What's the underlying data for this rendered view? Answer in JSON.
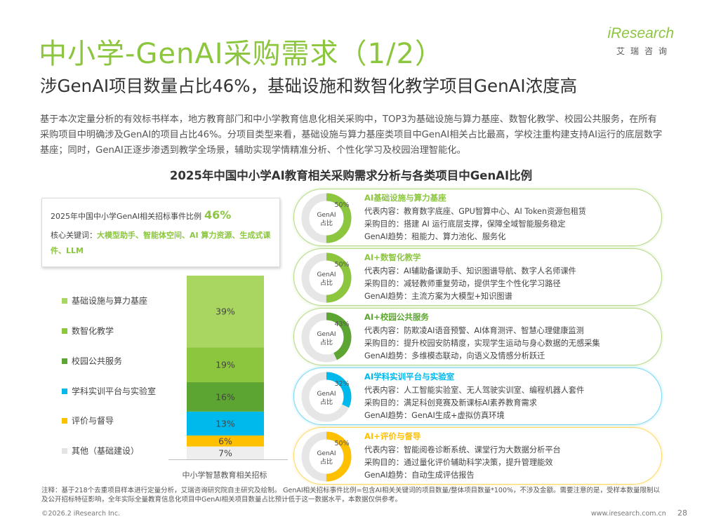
{
  "header": {
    "title": "中小学-GenAI采购需求（1/2）",
    "logo_main": "iResearch",
    "logo_sub": "艾瑞咨询",
    "subtitle": "涉GenAI项目数量占比46%，基础设施和数智化教学项目GenAI浓度高"
  },
  "intro": "基于本次定量分析的有效标书样本，地方教育部门和中小学教育信息化相关采购中，TOP3为基础设施与算力基座、数智化教学、校园公共服务，在所有采购项目中明确涉及GenAI的项目占比46%。分项目类型来看，基础设施与算力基座类项目中GenAI相关占比最高，学校注重构建支持AI运行的底层数字基座；同时，GenAI正逐步渗透到教学全场景，辅助实现学情精准分析、个性化学习及校园治理智能化。",
  "summary": {
    "label": "2025年中国中小学GenAI相关招标事件比例",
    "pct": "46%",
    "kw_label": "核心关键词：",
    "kw_value": "大模型助手、智能体空间、AI 算力资源、生成式课件、LLM"
  },
  "chart_data": {
    "type": "bar",
    "title": "2025年中国中小学AI教育相关采购需求分析与各类项目中GenAI比例",
    "categories": [
      "中小学智慧教育相关招标"
    ],
    "stacked": true,
    "series": [
      {
        "name": "其他（基础建设）",
        "values": [
          7
        ],
        "label": "7%",
        "color": "#eeeeee"
      },
      {
        "name": "评价与督导",
        "values": [
          6
        ],
        "label": "6%",
        "color": "#ffc000"
      },
      {
        "name": "学科实训平台与实验室",
        "values": [
          13
        ],
        "label": "13%",
        "color": "#00b9ec"
      },
      {
        "name": "校园公共服务",
        "values": [
          16
        ],
        "label": "16%",
        "color": "#5da532"
      },
      {
        "name": "数智化教学",
        "values": [
          19
        ],
        "label": "19%",
        "color": "#8cc63f"
      },
      {
        "name": "基础设施与算力基座",
        "values": [
          39
        ],
        "label": "39%",
        "color": "#a9d660"
      }
    ],
    "legend_position": "left"
  },
  "cards": [
    {
      "style": "green",
      "color": "#8cc63f",
      "pct": 50,
      "pct_label": "50%",
      "donut_label1": "GenAI",
      "donut_label2": "占比",
      "title": "AI基础设施与算力基座",
      "line1": "代表内容：教育数字底座、GPU智算中心、AI Token资源包租赁",
      "line2": "采购目的：搭建 AI 运行底层支撑，保障全域智能服务稳定",
      "line3": "GenAI趋势：租能力、算力池化、服务化"
    },
    {
      "style": "green",
      "color": "#8cc63f",
      "pct": 50,
      "pct_label": "50%",
      "donut_label1": "GenAI",
      "donut_label2": "占比",
      "title": "AI+数智化教学",
      "line1": "代表内容：AI辅助备课助手、知识图谱导航、数字人名师课件",
      "line2": "采购目的：减轻教师重复劳动，提供学生个性化学习路径",
      "line3": "GenAI趋势：主流方案为大模型+知识图谱"
    },
    {
      "style": "green",
      "color": "#5da532",
      "pct": 43,
      "pct_label": "43%",
      "donut_label1": "GenAI",
      "donut_label2": "占比",
      "title": "AI+校园公共服务",
      "line1": "代表内容：防欺凌AI语音预警、AI体育测评、智慧心理健康监测",
      "line2": "采购目的：提升校园安防精度，实现学生运动与身心数据的无感采集",
      "line3": "GenAI趋势：多维模态联动，向语义及情感分析跃迁"
    },
    {
      "style": "blue",
      "color": "#00b9ec",
      "pct": 32,
      "pct_label": "32%",
      "donut_label1": "GenAI",
      "donut_label2": "占比",
      "title": "AI学科实训平台与实验室",
      "line1": "代表内容：人工智能实验室、无人驾驶实训室、编程机器人套件",
      "line2": "采购目的：满足科创竞赛及新课标AI素养教育需求",
      "line3": "GenAI趋势：GenAI生成+虚拟仿真环境"
    },
    {
      "style": "yellow",
      "color": "#ffc000",
      "pct": 50,
      "pct_label": "50%",
      "donut_label1": "GenAI",
      "donut_label2": "占比",
      "title": "AI+评价与督导",
      "line1": "代表内容：智能阅卷诊断系统、课堂行为大数据分析平台",
      "line2": "采购目的：通过量化评价辅助科学决策，提升管理能效",
      "line3": "GenAI趋势：自动生成评估报告"
    }
  ],
  "footer": {
    "note": "注释：基于218个去重项目样本进行定量分析，艾瑞咨询研究院自主研究及绘制。 GenAI相关招标事件比例=包含AI相关关键词的项目数量/整体项目数量*100%，不涉及金额。需要注意的是，受样本数量限制以及公开招标特征影响，全年实际全量教育信息化项目中GenAI相关项目数量占比预计低于这一数据水平，本数据仅供参考。",
    "copyright": "©2026.2 iResearch Inc.",
    "url": "www.iresearch.com.cn",
    "page": "28"
  }
}
